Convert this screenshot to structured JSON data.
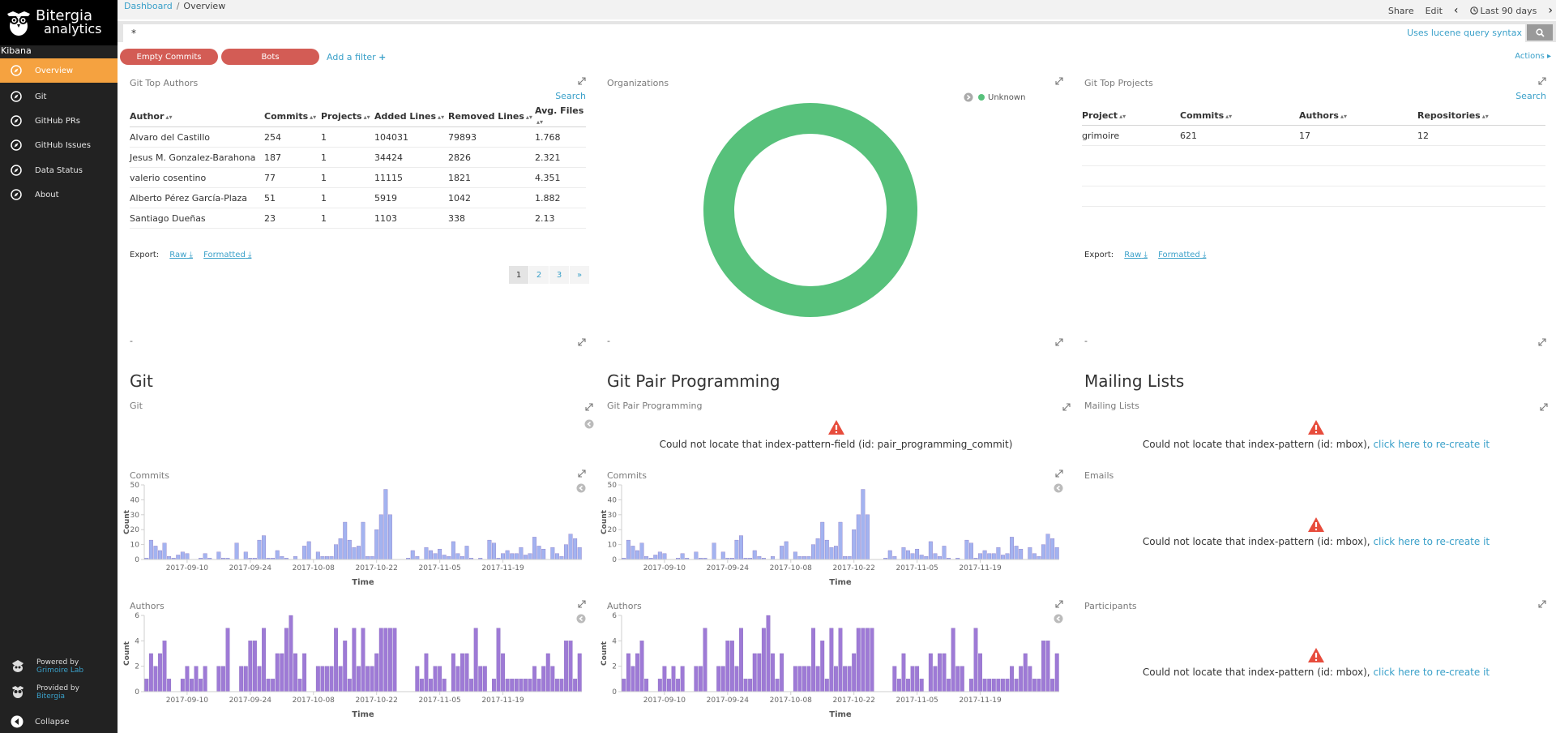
{
  "sidebar": {
    "brand_line1": "Bitergia",
    "brand_line2": "analytics",
    "app_label": "Kibana",
    "items": [
      {
        "label": "Overview",
        "active": true
      },
      {
        "label": "Git"
      },
      {
        "label": "GitHub PRs"
      },
      {
        "label": "GitHub Issues"
      },
      {
        "label": "Data Status"
      },
      {
        "label": "About"
      }
    ],
    "powered_by": "Powered by",
    "powered_by_sub": "Grimoire Lab",
    "provided_by": "Provided by",
    "provided_by_sub": "Bitergia",
    "collapse": "Collapse"
  },
  "topbar": {
    "breadcrumb_root": "Dashboard",
    "breadcrumb_sep": "/",
    "breadcrumb_current": "Overview",
    "share": "Share",
    "edit": "Edit",
    "time_range": "Last 90 days"
  },
  "query": {
    "value": "*",
    "lucene_hint": "Uses lucene query syntax"
  },
  "filters": {
    "pills": [
      "Empty Commits",
      "Bots"
    ],
    "add_filter": "Add a filter",
    "actions": "Actions"
  },
  "panels": {
    "top_authors": {
      "title": "Git Top Authors",
      "search": "Search",
      "columns": [
        "Author",
        "Commits",
        "Projects",
        "Added Lines",
        "Removed Lines",
        "Avg. Files"
      ],
      "rows": [
        [
          "Alvaro del Castillo",
          "254",
          "1",
          "104031",
          "79893",
          "1.768"
        ],
        [
          "Jesus M. Gonzalez-Barahona",
          "187",
          "1",
          "34424",
          "2826",
          "2.321"
        ],
        [
          "valerio cosentino",
          "77",
          "1",
          "11115",
          "1821",
          "4.351"
        ],
        [
          "Alberto Pérez García-Plaza",
          "51",
          "1",
          "5919",
          "1042",
          "1.882"
        ],
        [
          "Santiago Dueñas",
          "23",
          "1",
          "1103",
          "338",
          "2.13"
        ]
      ],
      "export_label": "Export:",
      "raw": "Raw",
      "formatted": "Formatted",
      "pages": [
        "1",
        "2",
        "3",
        "»"
      ],
      "footer": "-"
    },
    "organizations": {
      "title": "Organizations",
      "legend": "Unknown",
      "color": "#57c17b",
      "footer": "-"
    },
    "top_projects": {
      "title": "Git Top Projects",
      "search": "Search",
      "columns": [
        "Project",
        "Commits",
        "Authors",
        "Repositories"
      ],
      "rows": [
        [
          "grimoire",
          "621",
          "17",
          "12"
        ]
      ],
      "export_label": "Export:",
      "raw": "Raw",
      "formatted": "Formatted",
      "footer": "-"
    }
  },
  "sections": {
    "git": {
      "heading": "Git",
      "sub": "Git"
    },
    "pair": {
      "heading": "Git Pair Programming",
      "sub": "Git Pair Programming",
      "error": "Could not locate that index-pattern-field (id: pair_programming_commit)"
    },
    "mailing": {
      "heading": "Mailing Lists",
      "sub": "Mailing Lists",
      "error": "Could not locate that index-pattern (id: mbox),",
      "error_link": "click here to re-create it"
    }
  },
  "mailing_panels": {
    "emails": {
      "title": "Emails",
      "error": "Could not locate that index-pattern (id: mbox),",
      "error_link": "click here to re-create it"
    },
    "participants": {
      "title": "Participants",
      "error": "Could not locate that index-pattern (id: mbox),",
      "error_link": "click here to re-create it"
    }
  },
  "chart_data": [
    {
      "type": "bar",
      "id": "commits",
      "title": "Commits",
      "xlabel": "Time",
      "ylabel": "Count",
      "ylim": [
        0,
        50
      ],
      "yticks": [
        0,
        10,
        20,
        30,
        40,
        50
      ],
      "x_tick_labels": [
        "2017-09-10",
        "2017-09-24",
        "2017-10-08",
        "2017-10-22",
        "2017-11-05",
        "2017-11-19"
      ],
      "x_start": "2017-09-01",
      "color": "#a3b3f0",
      "values": [
        1,
        13,
        9,
        6,
        11,
        2,
        1,
        3,
        5,
        4,
        0,
        0,
        1,
        4,
        1,
        0,
        5,
        1,
        1,
        0,
        11,
        0,
        5,
        1,
        1,
        13,
        16,
        1,
        1,
        6,
        2,
        1,
        0,
        2,
        0,
        9,
        12,
        0,
        5,
        2,
        2,
        2,
        10,
        14,
        25,
        13,
        8,
        9,
        25,
        2,
        2,
        20,
        30,
        47,
        30,
        0,
        0,
        0,
        1,
        6,
        2,
        0,
        8,
        6,
        4,
        7,
        3,
        2,
        12,
        4,
        2,
        9,
        1,
        0,
        1,
        0,
        13,
        11,
        1,
        4,
        6,
        4,
        4,
        8,
        3,
        4,
        15,
        9,
        7,
        0,
        8,
        4,
        2,
        10,
        17,
        14,
        8
      ]
    },
    {
      "type": "bar",
      "id": "authors",
      "title": "Authors",
      "xlabel": "Time",
      "ylabel": "Count",
      "ylim": [
        0,
        6
      ],
      "yticks": [
        0,
        2,
        4,
        6
      ],
      "x_tick_labels": [
        "2017-09-10",
        "2017-09-24",
        "2017-10-08",
        "2017-10-22",
        "2017-11-05",
        "2017-11-19"
      ],
      "x_start": "2017-09-01",
      "color": "#9e7ad6",
      "values": [
        1,
        3,
        2,
        3,
        4,
        1,
        0,
        0,
        1,
        2,
        1,
        2,
        1,
        2,
        0,
        0,
        2,
        2,
        5,
        0,
        0,
        2,
        2,
        4,
        4,
        2,
        5,
        1,
        1,
        3,
        3,
        5,
        6,
        3,
        1,
        3,
        0,
        0,
        2,
        2,
        2,
        2,
        5,
        2,
        4,
        1,
        5,
        2,
        5,
        2,
        2,
        3,
        5,
        5,
        5,
        5,
        0,
        0,
        0,
        0,
        2,
        1,
        3,
        1,
        2,
        2,
        1,
        0,
        3,
        2,
        3,
        3,
        1,
        5,
        2,
        2,
        0,
        1,
        5,
        3,
        1,
        1,
        1,
        1,
        1,
        1,
        2,
        1,
        2,
        3,
        2,
        1,
        1,
        4,
        4,
        1,
        3
      ]
    }
  ]
}
